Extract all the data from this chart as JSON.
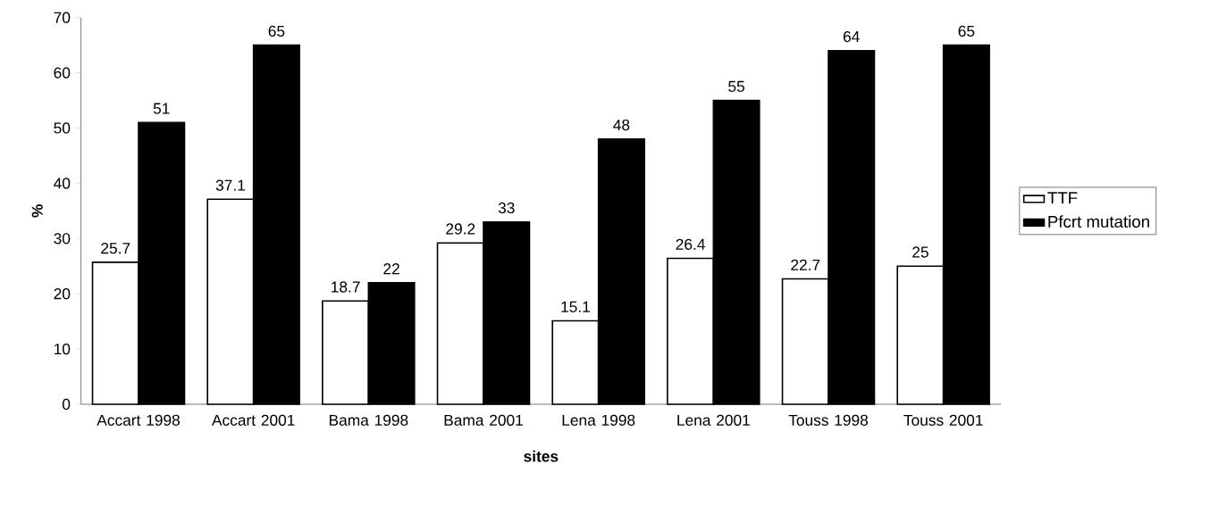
{
  "chart_data": {
    "type": "bar",
    "xlabel": "sites",
    "ylabel": "%",
    "categories": [
      "Accart 1998",
      "Accart 2001",
      "Bama 1998",
      "Bama 2001",
      "Lena 1998",
      "Lena 2001",
      "Touss 1998",
      "Touss 2001"
    ],
    "series": [
      {
        "name": "TTF",
        "color": "#ffffff",
        "values": [
          25.7,
          37.1,
          18.7,
          29.2,
          15.1,
          26.4,
          22.7,
          25
        ]
      },
      {
        "name": "Pfcrt mutation",
        "color": "#000000",
        "values": [
          51,
          65,
          22,
          33,
          48,
          55,
          64,
          65
        ]
      }
    ],
    "ylim": [
      0,
      70
    ],
    "yticks": [
      0,
      10,
      20,
      30,
      40,
      50,
      60,
      70
    ],
    "data_labels": true,
    "grid": false,
    "legend": "right"
  }
}
